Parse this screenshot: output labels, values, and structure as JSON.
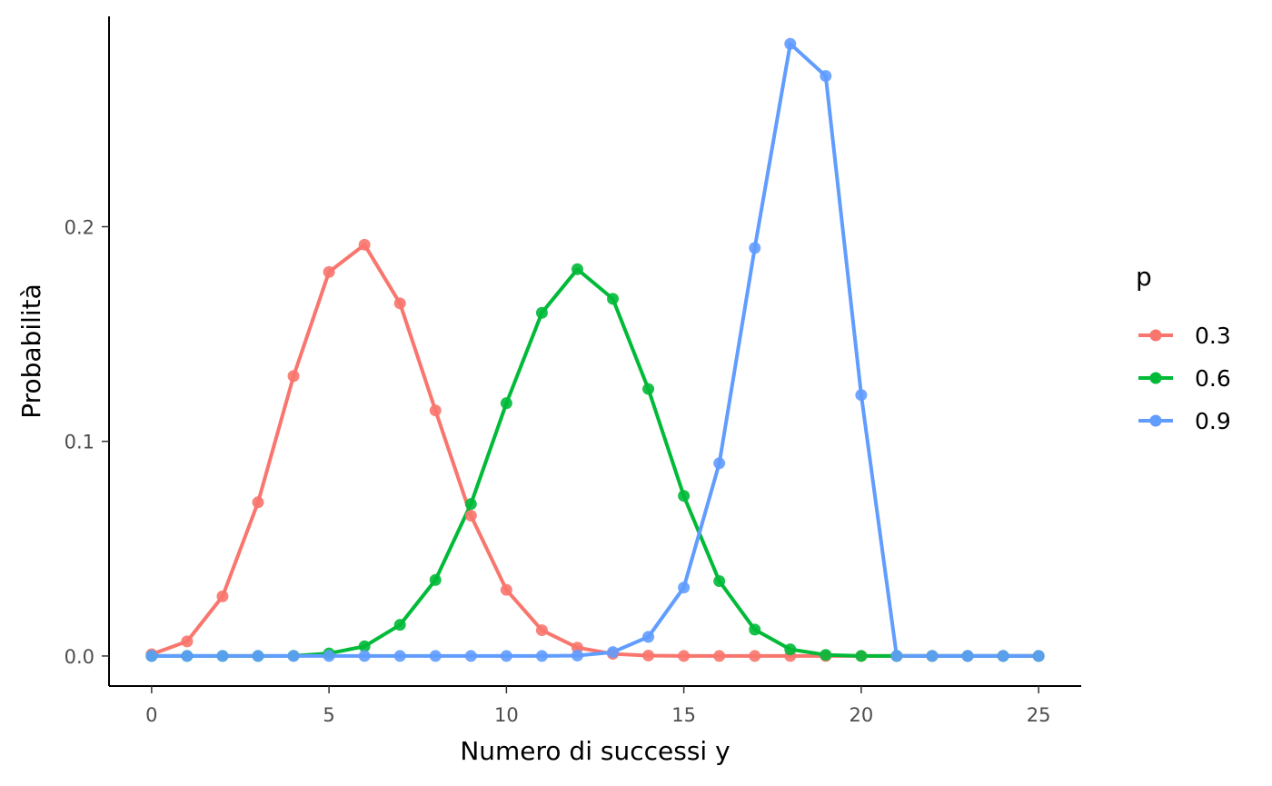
{
  "chart_data": {
    "type": "line",
    "xlabel": "Numero di successi y",
    "ylabel": "Probabilità",
    "xlim": [
      -1.2,
      26.2
    ],
    "ylim": [
      -0.014,
      0.298
    ],
    "x_ticks": [
      0,
      5,
      10,
      15,
      20,
      25
    ],
    "y_ticks": [
      0.0,
      0.1,
      0.2
    ],
    "x_tick_labels": [
      "0",
      "5",
      "10",
      "15",
      "20",
      "25"
    ],
    "y_tick_labels": [
      "0.0",
      "0.1",
      "0.2"
    ],
    "grid": false,
    "legend": {
      "title": "p",
      "position": "right"
    },
    "x": [
      0,
      1,
      2,
      3,
      4,
      5,
      6,
      7,
      8,
      9,
      10,
      11,
      12,
      13,
      14,
      15,
      16,
      17,
      18,
      19,
      20,
      21,
      22,
      23,
      24,
      25
    ],
    "series": [
      {
        "name": "0.3",
        "color": "#F8766D",
        "values": [
          0.0008,
          0.0068,
          0.0278,
          0.0716,
          0.1304,
          0.1789,
          0.1916,
          0.1643,
          0.1144,
          0.0654,
          0.0308,
          0.012,
          0.0039,
          0.001,
          0.0002,
          0.0,
          0.0,
          0.0,
          0.0,
          0.0,
          0.0,
          0.0,
          0.0,
          0.0,
          0.0,
          0.0
        ]
      },
      {
        "name": "0.6",
        "color": "#00BA38",
        "values": [
          0.0,
          0.0,
          0.0,
          0.0,
          0.0001,
          0.0012,
          0.0045,
          0.0145,
          0.0354,
          0.0708,
          0.1178,
          0.1599,
          0.1802,
          0.1664,
          0.1244,
          0.0746,
          0.0349,
          0.0123,
          0.0031,
          0.0005,
          0.0,
          0.0,
          0.0,
          0.0,
          0.0,
          0.0
        ]
      },
      {
        "name": "0.9",
        "color": "#619CFF",
        "values": [
          0.0,
          0.0,
          0.0,
          0.0,
          0.0,
          0.0,
          0.0,
          0.0,
          0.0,
          0.0,
          0.0,
          0.0,
          0.0002,
          0.0018,
          0.0089,
          0.0319,
          0.0898,
          0.1901,
          0.2852,
          0.2702,
          0.1216,
          0.0,
          0.0,
          0.0,
          0.0,
          0.0
        ]
      }
    ]
  }
}
